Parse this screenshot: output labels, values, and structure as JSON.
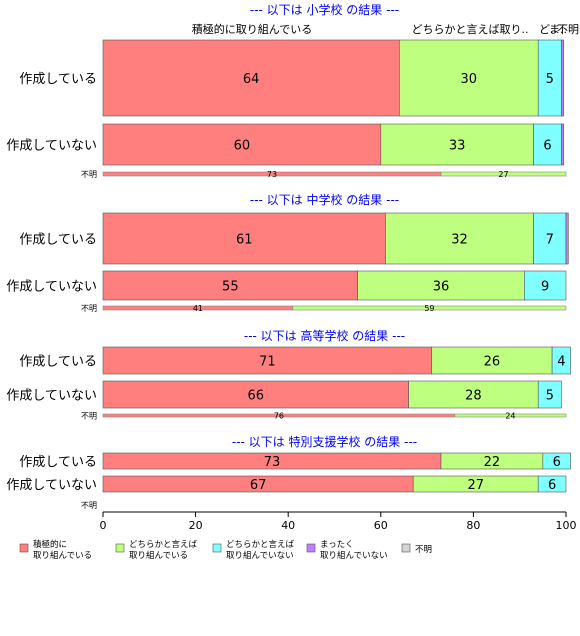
{
  "chart_data": {
    "type": "bar",
    "orientation": "horizontal",
    "stacked": true,
    "xlim": [
      0,
      100
    ],
    "x_ticks": [
      "0",
      "20",
      "40",
      "60",
      "80",
      "100"
    ],
    "grid": false,
    "legend_position": "bottom",
    "top_labels": [
      "積極的に取り組んでいる",
      "どちらかと言えば取り..",
      "ど..",
      "ま..",
      "不明"
    ],
    "series": [
      {
        "name": "積極的に\n取り組んでいる",
        "color": "#ff7f7f"
      },
      {
        "name": "どちらかと言えば\n取り組んでいる",
        "color": "#bfff7f"
      },
      {
        "name": "どちらかと言えば\n取り組んでいない",
        "color": "#7fffff"
      },
      {
        "name": "まったく\n取り組んでいない",
        "color": "#bf7fff"
      },
      {
        "name": "不明",
        "color": "#d3d3d3"
      }
    ],
    "groups": [
      {
        "title": "--- 以下は 小学校 の結果 ---",
        "rows": [
          {
            "label": "作成している",
            "values": [
              64,
              30,
              5,
              0.5,
              0
            ],
            "labels": [
              "64",
              "30",
              "5",
              "",
              ""
            ]
          },
          {
            "label": "作成していない",
            "values": [
              60,
              33,
              6,
              0.5,
              0
            ],
            "labels": [
              "60",
              "33",
              "6",
              "",
              ""
            ]
          }
        ],
        "unknown": {
          "label": "不明",
          "values": [
            73,
            27
          ],
          "labels": [
            "73",
            "27"
          ]
        }
      },
      {
        "title": "--- 以下は 中学校 の結果 ---",
        "rows": [
          {
            "label": "作成している",
            "values": [
              61,
              32,
              7,
              0.5,
              0
            ],
            "labels": [
              "61",
              "32",
              "7",
              "",
              ""
            ]
          },
          {
            "label": "作成していない",
            "values": [
              55,
              36,
              9,
              0,
              0
            ],
            "labels": [
              "55",
              "36",
              "9",
              "",
              ""
            ]
          }
        ],
        "unknown": {
          "label": "不明",
          "values": [
            41,
            59
          ],
          "labels": [
            "41",
            "59"
          ]
        }
      },
      {
        "title": "--- 以下は 高等学校 の結果 ---",
        "rows": [
          {
            "label": "作成している",
            "values": [
              71,
              26,
              4,
              0,
              0
            ],
            "labels": [
              "71",
              "26",
              "4",
              "",
              ""
            ]
          },
          {
            "label": "作成していない",
            "values": [
              66,
              28,
              5,
              0,
              0
            ],
            "labels": [
              "66",
              "28",
              "5",
              "",
              ""
            ]
          }
        ],
        "unknown": {
          "label": "不明",
          "values": [
            76,
            24
          ],
          "labels": [
            "76",
            "24"
          ]
        }
      },
      {
        "title": "--- 以下は 特別支援学校 の結果 ---",
        "rows": [
          {
            "label": "作成している",
            "values": [
              73,
              22,
              6,
              0,
              0
            ],
            "labels": [
              "73",
              "22",
              "6",
              "",
              ""
            ]
          },
          {
            "label": "作成していない",
            "values": [
              67,
              27,
              6,
              0,
              0
            ],
            "labels": [
              "67",
              "27",
              "6",
              "",
              ""
            ]
          }
        ],
        "unknown": {
          "label": "不明",
          "values": [],
          "labels": []
        }
      }
    ]
  }
}
